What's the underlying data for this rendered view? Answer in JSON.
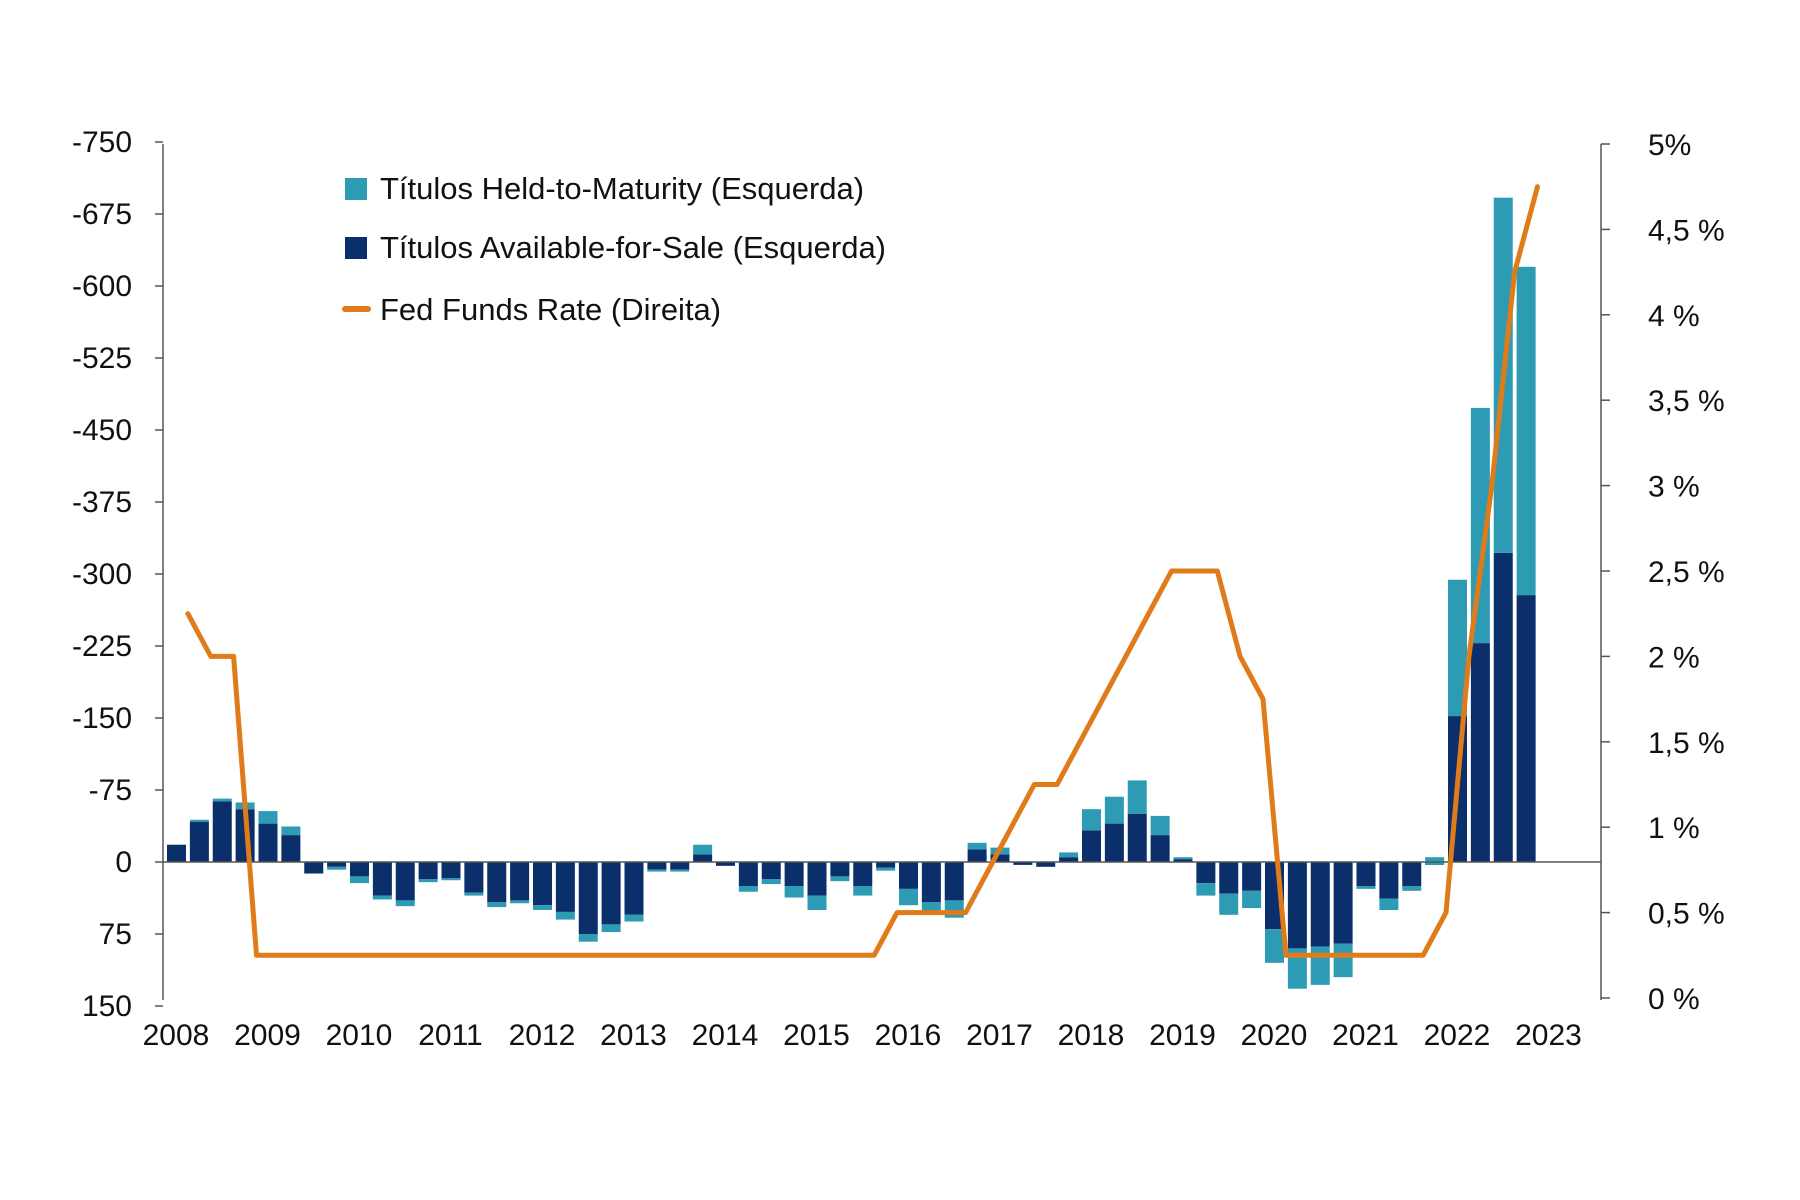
{
  "colors": {
    "htm": "#2e9bb5",
    "afs": "#0a2f6b",
    "fed": "#e07b1a",
    "axis": "#555555",
    "text": "#111111"
  },
  "legend": {
    "htm": "Títulos Held-to-Maturity (Esquerda)",
    "afs": "Títulos Available-for-Sale (Esquerda)",
    "fed": "Fed Funds Rate (Direita)"
  },
  "chart_data": {
    "type": "bar",
    "title": "",
    "xlabel": "",
    "ylabel": "",
    "left_axis": {
      "ylim": [
        -750,
        150
      ],
      "inverted": true,
      "ticks": [
        -750,
        -675,
        -600,
        -525,
        -450,
        -375,
        -300,
        -225,
        -150,
        -75,
        0,
        75,
        150
      ],
      "tick_labels": [
        "-750",
        "-675",
        "-600",
        "-525",
        "-450",
        "-375",
        "-300",
        "-225",
        "-150",
        "-75",
        "0",
        "75",
        "150"
      ]
    },
    "right_axis": {
      "ylim": [
        0,
        5
      ],
      "ticks": [
        0,
        0.5,
        1,
        1.5,
        2,
        2.5,
        3,
        3.5,
        4,
        4.5,
        5
      ],
      "tick_labels": [
        "0 %",
        "0,5 %",
        "1 %",
        "1,5 %",
        "2 %",
        "2,5 %",
        "3 %",
        "3,5 %",
        "4 %",
        "4,5 %",
        "5%"
      ]
    },
    "x_axis": {
      "range": [
        2008,
        2023.25
      ],
      "year_labels": [
        "2008",
        "2009",
        "2010",
        "2011",
        "2012",
        "2013",
        "2014",
        "2015",
        "2016",
        "2017",
        "2018",
        "2019",
        "2020",
        "2021",
        "2022",
        "2023"
      ]
    },
    "x": [
      2008.0,
      2008.25,
      2008.5,
      2008.75,
      2009.0,
      2009.25,
      2009.5,
      2009.75,
      2010.0,
      2010.25,
      2010.5,
      2010.75,
      2011.0,
      2011.25,
      2011.5,
      2011.75,
      2012.0,
      2012.25,
      2012.5,
      2012.75,
      2013.0,
      2013.25,
      2013.5,
      2013.75,
      2014.0,
      2014.25,
      2014.5,
      2014.75,
      2015.0,
      2015.25,
      2015.5,
      2015.75,
      2016.0,
      2016.25,
      2016.5,
      2016.75,
      2017.0,
      2017.25,
      2017.5,
      2017.75,
      2018.0,
      2018.25,
      2018.5,
      2018.75,
      2019.0,
      2019.25,
      2019.5,
      2019.75,
      2020.0,
      2020.25,
      2020.5,
      2020.75,
      2021.0,
      2021.25,
      2021.5,
      2021.75,
      2022.0,
      2022.25,
      2022.5,
      2022.75
    ],
    "series": [
      {
        "name": "Títulos Available-for-Sale (Esquerda)",
        "values": [
          -18,
          -42,
          -63,
          -55,
          -40,
          -28,
          12,
          5,
          15,
          35,
          40,
          18,
          17,
          32,
          42,
          40,
          45,
          52,
          75,
          65,
          55,
          8,
          8,
          -8,
          4,
          25,
          18,
          25,
          35,
          15,
          25,
          6,
          28,
          42,
          40,
          -13,
          -8,
          3,
          5,
          -5,
          -33,
          -40,
          -50,
          -28,
          -3,
          22,
          33,
          30,
          70,
          90,
          88,
          85,
          25,
          38,
          25,
          3,
          -152,
          -228,
          -322,
          -278
        ]
      },
      {
        "name": "Títulos Held-to-Maturity (Esquerda)",
        "values": [
          0,
          -2,
          -3,
          -7,
          -13,
          -9,
          0,
          3,
          7,
          4,
          6,
          3,
          2,
          3,
          5,
          3,
          5,
          8,
          8,
          8,
          7,
          2,
          2,
          -10,
          0,
          6,
          5,
          12,
          15,
          5,
          10,
          3,
          17,
          13,
          18,
          -7,
          -7,
          0,
          0,
          -5,
          -22,
          -28,
          -35,
          -20,
          -2,
          13,
          22,
          18,
          35,
          42,
          40,
          35,
          3,
          12,
          5,
          -8,
          -142,
          -245,
          -370,
          -342
        ]
      },
      {
        "name": "Fed Funds Rate (Direita)",
        "type": "line",
        "x": [
          2008.25,
          2008.5,
          2008.75,
          2009.0,
          2015.75,
          2016.0,
          2016.75,
          2017.25,
          2017.5,
          2017.75,
          2018.0,
          2018.25,
          2018.5,
          2018.75,
          2019.0,
          2019.5,
          2019.75,
          2020.0,
          2020.25,
          2021.75,
          2022.0,
          2022.25,
          2022.5,
          2022.75,
          2023.0
        ],
        "values": [
          2.25,
          2.0,
          2.0,
          0.25,
          0.25,
          0.5,
          0.5,
          1.0,
          1.25,
          1.25,
          1.5,
          1.75,
          2.0,
          2.25,
          2.5,
          2.5,
          2.0,
          1.75,
          0.25,
          0.25,
          0.5,
          2.0,
          3.0,
          4.25,
          4.75
        ]
      }
    ]
  }
}
